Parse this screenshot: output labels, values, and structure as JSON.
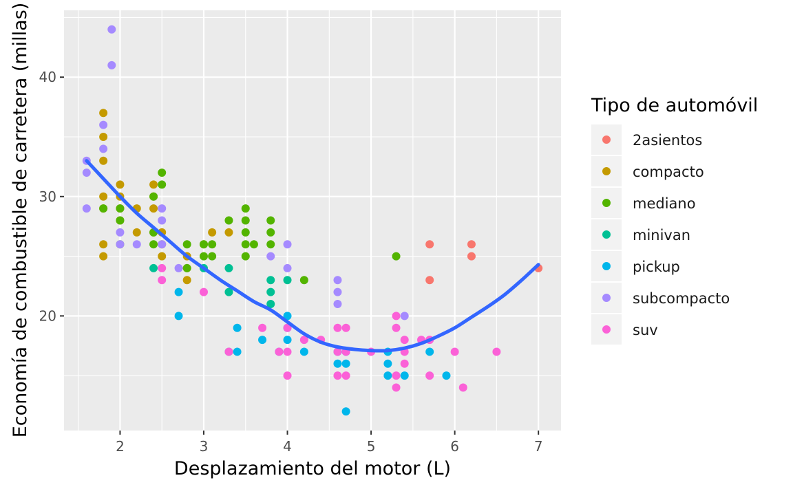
{
  "chart_data": {
    "type": "scatter",
    "xlabel": "Desplazamiento del motor (L)",
    "ylabel": "Economía de combustible de carretera (millas)",
    "xlim": [
      1.33,
      7.27
    ],
    "ylim": [
      10.4,
      45.6
    ],
    "x_ticks": [
      2,
      3,
      4,
      5,
      6,
      7
    ],
    "y_ticks": [
      20,
      30,
      40
    ],
    "grid": true,
    "legend": {
      "title": "Tipo de automóvil",
      "placement": "right",
      "entries": [
        {
          "name": "2asientos",
          "color": "#F8766D"
        },
        {
          "name": "compacto",
          "color": "#C49A00"
        },
        {
          "name": "mediano",
          "color": "#53B400"
        },
        {
          "name": "minivan",
          "color": "#00C094"
        },
        {
          "name": "pickup",
          "color": "#00B6EB"
        },
        {
          "name": "subcompacto",
          "color": "#A58AFF"
        },
        {
          "name": "suv",
          "color": "#FB61D7"
        }
      ]
    },
    "series": [
      {
        "name": "2asientos",
        "points": [
          [
            5.7,
            26
          ],
          [
            5.7,
            23
          ],
          [
            6.2,
            26
          ],
          [
            6.2,
            25
          ],
          [
            7.0,
            24
          ]
        ]
      },
      {
        "name": "compacto",
        "points": [
          [
            1.8,
            37
          ],
          [
            1.8,
            35
          ],
          [
            1.8,
            33
          ],
          [
            1.8,
            30
          ],
          [
            1.8,
            29
          ],
          [
            1.8,
            26
          ],
          [
            1.8,
            25
          ],
          [
            2.0,
            31
          ],
          [
            2.0,
            30
          ],
          [
            2.0,
            29
          ],
          [
            2.0,
            28
          ],
          [
            2.2,
            29
          ],
          [
            2.2,
            27
          ],
          [
            2.4,
            31
          ],
          [
            2.4,
            30
          ],
          [
            2.4,
            29
          ],
          [
            2.4,
            27
          ],
          [
            2.5,
            27
          ],
          [
            2.5,
            26
          ],
          [
            2.5,
            25
          ],
          [
            2.8,
            25
          ],
          [
            2.8,
            24
          ],
          [
            2.8,
            23
          ],
          [
            3.0,
            26
          ],
          [
            3.1,
            27
          ],
          [
            3.3,
            27
          ]
        ]
      },
      {
        "name": "mediano",
        "points": [
          [
            1.8,
            29
          ],
          [
            2.0,
            29
          ],
          [
            2.0,
            28
          ],
          [
            2.0,
            26
          ],
          [
            2.4,
            30
          ],
          [
            2.4,
            27
          ],
          [
            2.4,
            26
          ],
          [
            2.5,
            32
          ],
          [
            2.5,
            31
          ],
          [
            2.8,
            26
          ],
          [
            2.8,
            24
          ],
          [
            3.0,
            26
          ],
          [
            3.0,
            25
          ],
          [
            3.1,
            26
          ],
          [
            3.1,
            25
          ],
          [
            3.3,
            28
          ],
          [
            3.5,
            29
          ],
          [
            3.5,
            28
          ],
          [
            3.5,
            27
          ],
          [
            3.5,
            26
          ],
          [
            3.5,
            25
          ],
          [
            3.6,
            26
          ],
          [
            3.8,
            28
          ],
          [
            3.8,
            27
          ],
          [
            3.8,
            26
          ],
          [
            4.2,
            23
          ],
          [
            5.3,
            25
          ]
        ]
      },
      {
        "name": "minivan",
        "points": [
          [
            2.4,
            24
          ],
          [
            3.0,
            24
          ],
          [
            3.3,
            24
          ],
          [
            3.3,
            22
          ],
          [
            3.3,
            17
          ],
          [
            3.8,
            23
          ],
          [
            3.8,
            22
          ],
          [
            3.8,
            21
          ],
          [
            4.0,
            23
          ]
        ]
      },
      {
        "name": "pickup",
        "points": [
          [
            2.7,
            22
          ],
          [
            2.7,
            20
          ],
          [
            3.4,
            19
          ],
          [
            3.4,
            17
          ],
          [
            3.7,
            18
          ],
          [
            3.9,
            17
          ],
          [
            4.0,
            20
          ],
          [
            4.0,
            19
          ],
          [
            4.0,
            18
          ],
          [
            4.2,
            17
          ],
          [
            4.6,
            17
          ],
          [
            4.6,
            16
          ],
          [
            4.7,
            17
          ],
          [
            4.7,
            16
          ],
          [
            4.7,
            12
          ],
          [
            5.2,
            17
          ],
          [
            5.2,
            16
          ],
          [
            5.2,
            15
          ],
          [
            5.4,
            15
          ],
          [
            5.7,
            17
          ],
          [
            5.9,
            15
          ]
        ]
      },
      {
        "name": "subcompacto",
        "points": [
          [
            1.6,
            33
          ],
          [
            1.6,
            32
          ],
          [
            1.6,
            29
          ],
          [
            1.8,
            36
          ],
          [
            1.8,
            34
          ],
          [
            1.9,
            44
          ],
          [
            1.9,
            41
          ],
          [
            2.0,
            27
          ],
          [
            2.0,
            26
          ],
          [
            2.2,
            26
          ],
          [
            2.5,
            29
          ],
          [
            2.5,
            28
          ],
          [
            2.5,
            26
          ],
          [
            2.7,
            24
          ],
          [
            3.8,
            25
          ],
          [
            4.0,
            26
          ],
          [
            4.0,
            24
          ],
          [
            4.6,
            23
          ],
          [
            4.6,
            22
          ],
          [
            4.6,
            21
          ],
          [
            5.4,
            20
          ]
        ]
      },
      {
        "name": "suv",
        "points": [
          [
            2.5,
            24
          ],
          [
            2.5,
            23
          ],
          [
            3.0,
            22
          ],
          [
            3.3,
            17
          ],
          [
            3.7,
            19
          ],
          [
            3.9,
            17
          ],
          [
            4.0,
            19
          ],
          [
            4.0,
            17
          ],
          [
            4.0,
            15
          ],
          [
            4.2,
            18
          ],
          [
            4.4,
            18
          ],
          [
            4.6,
            19
          ],
          [
            4.6,
            17
          ],
          [
            4.6,
            15
          ],
          [
            4.7,
            19
          ],
          [
            4.7,
            17
          ],
          [
            4.7,
            15
          ],
          [
            5.0,
            17
          ],
          [
            5.3,
            20
          ],
          [
            5.3,
            19
          ],
          [
            5.3,
            15
          ],
          [
            5.3,
            14
          ],
          [
            5.4,
            18
          ],
          [
            5.4,
            17
          ],
          [
            5.4,
            16
          ],
          [
            5.6,
            18
          ],
          [
            5.7,
            18
          ],
          [
            5.7,
            15
          ],
          [
            6.0,
            17
          ],
          [
            6.1,
            14
          ],
          [
            6.5,
            17
          ]
        ]
      }
    ],
    "smooth": {
      "color": "#3366FF",
      "points": [
        [
          1.6,
          33.0
        ],
        [
          1.8,
          31.5
        ],
        [
          2.0,
          30.0
        ],
        [
          2.2,
          28.6
        ],
        [
          2.4,
          27.4
        ],
        [
          2.6,
          26.2
        ],
        [
          2.8,
          25.0
        ],
        [
          3.0,
          24.0
        ],
        [
          3.2,
          23.0
        ],
        [
          3.4,
          22.1
        ],
        [
          3.6,
          21.2
        ],
        [
          3.8,
          20.5
        ],
        [
          4.0,
          19.5
        ],
        [
          4.2,
          18.5
        ],
        [
          4.4,
          17.8
        ],
        [
          4.6,
          17.4
        ],
        [
          4.8,
          17.2
        ],
        [
          5.0,
          17.1
        ],
        [
          5.2,
          17.1
        ],
        [
          5.4,
          17.3
        ],
        [
          5.6,
          17.7
        ],
        [
          5.8,
          18.3
        ],
        [
          6.0,
          19.0
        ],
        [
          6.2,
          19.9
        ],
        [
          6.4,
          20.8
        ],
        [
          6.6,
          21.8
        ],
        [
          6.8,
          23.0
        ],
        [
          7.0,
          24.3
        ]
      ]
    }
  }
}
